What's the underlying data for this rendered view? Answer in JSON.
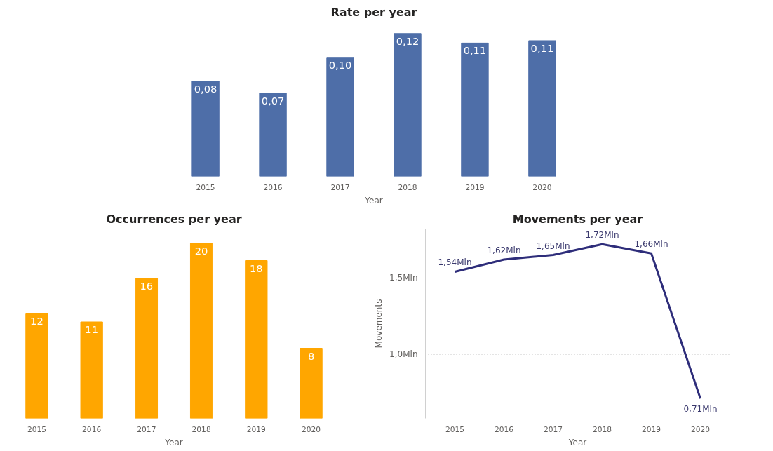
{
  "chart_data": [
    {
      "type": "bar",
      "title": "Rate per year",
      "xlabel": "Year",
      "categories": [
        "2015",
        "2016",
        "2017",
        "2018",
        "2019",
        "2020"
      ],
      "values": [
        0.08,
        0.07,
        0.1,
        0.12,
        0.112,
        0.114
      ],
      "value_labels": [
        "0,08",
        "0,07",
        "0,10",
        "0,12",
        "0,11",
        "0,11"
      ],
      "color": "#4e6ea8",
      "grid": false,
      "tick_labels": "x"
    },
    {
      "type": "bar",
      "title": "Occurrences per year",
      "xlabel": "Year",
      "categories": [
        "2015",
        "2016",
        "2017",
        "2018",
        "2019",
        "2020"
      ],
      "values": [
        12,
        11,
        16,
        20,
        18,
        8
      ],
      "data_labels": true,
      "color": "#ffa600",
      "grid": false,
      "tick_labels": "x"
    },
    {
      "type": "line",
      "title": "Movements per year",
      "xlabel": "Year",
      "ylabel": "Movements",
      "categories": [
        "2015",
        "2016",
        "2017",
        "2018",
        "2019",
        "2020"
      ],
      "values": [
        1.54,
        1.62,
        1.65,
        1.72,
        1.66,
        0.71
      ],
      "value_labels": [
        "1,54Mln",
        "1,62Mln",
        "1,65Mln",
        "1,72Mln",
        "1,66Mln",
        "0,71Mln"
      ],
      "color": "#2e2d7a",
      "ylim": [
        0.58,
        1.82
      ],
      "yticks": [
        {
          "value": 1.0,
          "label": "1,0Mln"
        },
        {
          "value": 1.5,
          "label": "1,5Mln"
        }
      ],
      "grid": "y",
      "line_style": "solid",
      "marker": "none"
    }
  ]
}
